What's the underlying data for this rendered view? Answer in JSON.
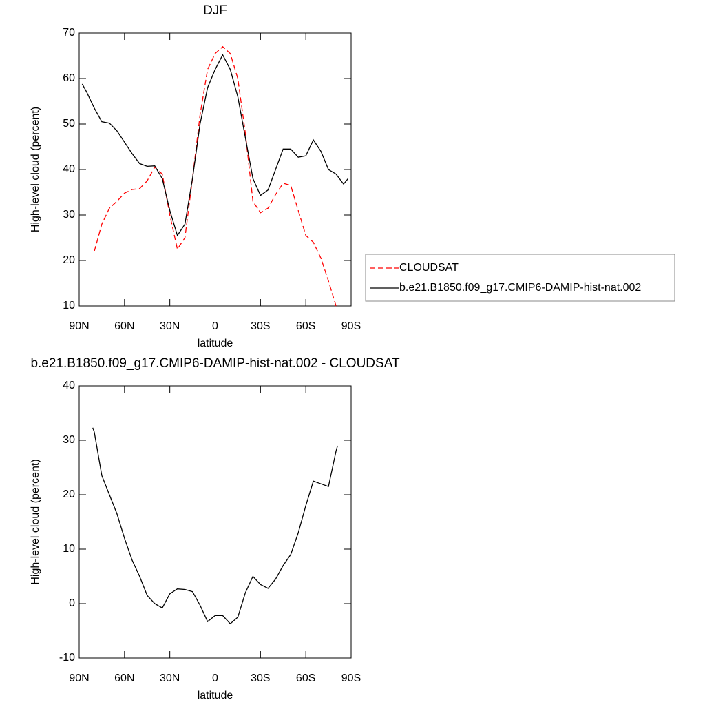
{
  "chart_data": [
    {
      "type": "line",
      "title": "DJF",
      "xlabel": "latitude",
      "ylabel": "High-level cloud (percent)",
      "x": [
        88,
        85,
        80,
        75,
        70,
        65,
        60,
        55,
        50,
        45,
        40,
        35,
        30,
        25,
        20,
        15,
        10,
        5,
        0,
        -5,
        -10,
        -15,
        -20,
        -25,
        -30,
        -35,
        -40,
        -45,
        -50,
        -55,
        -60,
        -65,
        -70,
        -75,
        -80,
        -85,
        -88
      ],
      "series": [
        {
          "name": "CLOUDSAT",
          "color": "#ff0000",
          "linestyle": "dashed",
          "values": [
            null,
            null,
            22,
            28,
            31.5,
            33,
            34.8,
            35.6,
            35.8,
            37.5,
            40.5,
            39,
            30,
            22.5,
            25,
            38,
            52,
            62,
            65.5,
            67,
            65.5,
            60,
            48,
            33,
            30.5,
            31.5,
            34.5,
            37,
            36.5,
            31,
            25.5,
            24,
            20.5,
            15.5,
            10,
            null,
            null
          ]
        },
        {
          "name": "b.e21.B1850.f09_g17.CMIP6-DAMIP-hist-nat.002",
          "color": "#000000",
          "linestyle": "solid",
          "values": [
            58.8,
            57,
            53.5,
            50.5,
            50.2,
            48.5,
            46,
            43.5,
            41.3,
            40.7,
            40.8,
            38,
            31,
            25.5,
            28,
            38,
            50,
            58,
            62,
            65.2,
            62,
            56,
            47,
            38,
            34.3,
            35.5,
            40,
            44.5,
            44.5,
            42.7,
            43,
            46.5,
            44,
            40,
            39,
            36.8,
            38
          ]
        }
      ],
      "xlim": [
        90,
        -90
      ],
      "xticks": [
        {
          "value": 90,
          "label": "90N"
        },
        {
          "value": 60,
          "label": "60N"
        },
        {
          "value": 30,
          "label": "30N"
        },
        0,
        {
          "value": -30,
          "label": "30S"
        },
        {
          "value": -60,
          "label": "60S"
        },
        {
          "value": -90,
          "label": "90S"
        }
      ],
      "ylim": [
        10,
        70
      ],
      "yticks": [
        10,
        20,
        30,
        40,
        50,
        60,
        70
      ],
      "legend": "right"
    },
    {
      "type": "line",
      "title": "b.e21.B1850.f09_g17.CMIP6-DAMIP-hist-nat.002 - CLOUDSAT",
      "xlabel": "latitude",
      "ylabel": "High-level cloud (percent)",
      "x": [
        81,
        80,
        75,
        70,
        65,
        60,
        55,
        50,
        45,
        40,
        35,
        30,
        25,
        20,
        15,
        10,
        5,
        0,
        -5,
        -10,
        -15,
        -20,
        -25,
        -30,
        -35,
        -40,
        -45,
        -50,
        -55,
        -60,
        -65,
        -70,
        -75,
        -80,
        -81
      ],
      "values": [
        32.3,
        31.5,
        23.5,
        20,
        16.5,
        12,
        8,
        5,
        1.5,
        0,
        -0.8,
        1.8,
        2.7,
        2.6,
        2.2,
        -0.3,
        -3.3,
        -2.2,
        -2.2,
        -3.7,
        -2.5,
        2,
        5,
        3.5,
        2.8,
        4.5,
        7,
        9,
        13,
        18,
        22.5,
        22,
        21.5,
        28,
        29
      ],
      "color": "#000000",
      "xlim": [
        90,
        -90
      ],
      "xticks": [
        {
          "value": 90,
          "label": "90N"
        },
        {
          "value": 60,
          "label": "60N"
        },
        {
          "value": 30,
          "label": "30N"
        },
        0,
        {
          "value": -30,
          "label": "30S"
        },
        {
          "value": -60,
          "label": "60S"
        },
        {
          "value": -90,
          "label": "90S"
        }
      ],
      "ylim": [
        -10,
        40
      ],
      "yticks": [
        -10,
        0,
        10,
        20,
        30,
        40
      ]
    }
  ]
}
